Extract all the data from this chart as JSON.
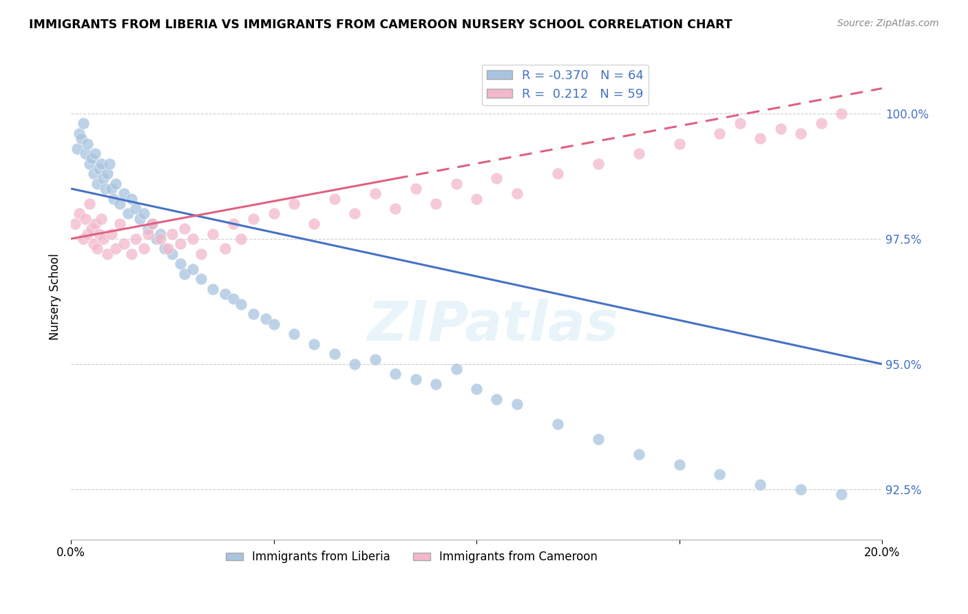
{
  "title": "IMMIGRANTS FROM LIBERIA VS IMMIGRANTS FROM CAMEROON NURSERY SCHOOL CORRELATION CHART",
  "source": "Source: ZipAtlas.com",
  "xlabel_liberia": "Immigrants from Liberia",
  "xlabel_cameroon": "Immigrants from Cameroon",
  "ylabel": "Nursery School",
  "xlim": [
    0.0,
    20.0
  ],
  "ylim": [
    91.5,
    101.2
  ],
  "yticks": [
    92.5,
    95.0,
    97.5,
    100.0
  ],
  "xticks": [
    0.0,
    5.0,
    10.0,
    15.0,
    20.0
  ],
  "xtick_labels": [
    "0.0%",
    "",
    "",
    "",
    "20.0%"
  ],
  "ytick_labels": [
    "92.5%",
    "95.0%",
    "97.5%",
    "100.0%"
  ],
  "R_liberia": -0.37,
  "N_liberia": 64,
  "R_cameroon": 0.212,
  "N_cameroon": 59,
  "color_liberia": "#a8c4e0",
  "color_cameroon": "#f2b8cb",
  "line_color_liberia": "#4472c4",
  "line_color_cameroon": "#e06080",
  "legend_text_color": "#4472c4",
  "background_color": "#ffffff",
  "liberia_trend_x": [
    0.0,
    20.0
  ],
  "liberia_trend_y": [
    98.5,
    95.0
  ],
  "cameroon_trend_x": [
    0.0,
    20.0
  ],
  "cameroon_trend_y": [
    97.5,
    100.5
  ],
  "cameroon_trend_solid_end": 8.0,
  "liberia_x": [
    0.15,
    0.2,
    0.25,
    0.3,
    0.35,
    0.4,
    0.45,
    0.5,
    0.55,
    0.6,
    0.65,
    0.7,
    0.75,
    0.8,
    0.85,
    0.9,
    0.95,
    1.0,
    1.05,
    1.1,
    1.2,
    1.3,
    1.4,
    1.5,
    1.6,
    1.7,
    1.8,
    1.9,
    2.0,
    2.1,
    2.2,
    2.3,
    2.5,
    2.7,
    2.8,
    3.0,
    3.2,
    3.5,
    3.8,
    4.0,
    4.2,
    4.5,
    4.8,
    5.0,
    5.5,
    6.0,
    6.5,
    7.0,
    7.5,
    8.0,
    8.5,
    9.0,
    9.5,
    10.0,
    10.5,
    11.0,
    12.0,
    13.0,
    14.0,
    15.0,
    16.0,
    17.0,
    18.0,
    19.0
  ],
  "liberia_y": [
    99.3,
    99.6,
    99.5,
    99.8,
    99.2,
    99.4,
    99.0,
    99.1,
    98.8,
    99.2,
    98.6,
    98.9,
    99.0,
    98.7,
    98.5,
    98.8,
    99.0,
    98.5,
    98.3,
    98.6,
    98.2,
    98.4,
    98.0,
    98.3,
    98.1,
    97.9,
    98.0,
    97.7,
    97.8,
    97.5,
    97.6,
    97.3,
    97.2,
    97.0,
    96.8,
    96.9,
    96.7,
    96.5,
    96.4,
    96.3,
    96.2,
    96.0,
    95.9,
    95.8,
    95.6,
    95.4,
    95.2,
    95.0,
    95.1,
    94.8,
    94.7,
    94.6,
    94.9,
    94.5,
    94.3,
    94.2,
    93.8,
    93.5,
    93.2,
    93.0,
    92.8,
    92.6,
    92.5,
    92.4
  ],
  "cameroon_x": [
    0.1,
    0.2,
    0.3,
    0.35,
    0.4,
    0.45,
    0.5,
    0.55,
    0.6,
    0.65,
    0.7,
    0.75,
    0.8,
    0.9,
    1.0,
    1.1,
    1.2,
    1.3,
    1.5,
    1.6,
    1.8,
    1.9,
    2.0,
    2.2,
    2.4,
    2.5,
    2.7,
    2.8,
    3.0,
    3.2,
    3.5,
    3.8,
    4.0,
    4.2,
    4.5,
    5.0,
    5.5,
    6.0,
    6.5,
    7.0,
    7.5,
    8.0,
    8.5,
    9.0,
    9.5,
    10.0,
    10.5,
    11.0,
    12.0,
    13.0,
    14.0,
    15.0,
    16.0,
    16.5,
    17.0,
    17.5,
    18.0,
    18.5,
    19.0
  ],
  "cameroon_y": [
    97.8,
    98.0,
    97.5,
    97.9,
    97.6,
    98.2,
    97.7,
    97.4,
    97.8,
    97.3,
    97.6,
    97.9,
    97.5,
    97.2,
    97.6,
    97.3,
    97.8,
    97.4,
    97.2,
    97.5,
    97.3,
    97.6,
    97.8,
    97.5,
    97.3,
    97.6,
    97.4,
    97.7,
    97.5,
    97.2,
    97.6,
    97.3,
    97.8,
    97.5,
    97.9,
    98.0,
    98.2,
    97.8,
    98.3,
    98.0,
    98.4,
    98.1,
    98.5,
    98.2,
    98.6,
    98.3,
    98.7,
    98.4,
    98.8,
    99.0,
    99.2,
    99.4,
    99.6,
    99.8,
    99.5,
    99.7,
    99.6,
    99.8,
    100.0
  ]
}
